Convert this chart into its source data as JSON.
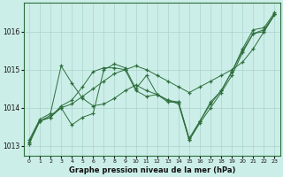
{
  "background_color": "#cceee8",
  "grid_color": "#aad4cc",
  "line_color": "#2d6e3c",
  "marker_color": "#2d6e3c",
  "title": "Graphe pression niveau de la mer (hPa)",
  "ylim": [
    1012.75,
    1016.75
  ],
  "xlim": [
    -0.5,
    23.5
  ],
  "yticks": [
    1013,
    1014,
    1015,
    1016
  ],
  "xticks": [
    0,
    1,
    2,
    3,
    4,
    5,
    6,
    7,
    8,
    9,
    10,
    11,
    12,
    13,
    14,
    15,
    16,
    17,
    18,
    19,
    20,
    21,
    22,
    23
  ],
  "series": [
    [
      1013.05,
      1013.65,
      1013.75,
      1014.0,
      1013.55,
      1013.75,
      1013.85,
      1015.0,
      1015.15,
      1015.05,
      1014.5,
      1014.85,
      1014.35,
      1014.15,
      1014.15,
      1013.15,
      1013.65,
      1014.15,
      1014.45,
      1014.95,
      1015.55,
      1016.05,
      1016.1,
      1016.5
    ],
    [
      1013.1,
      1013.65,
      1013.75,
      1014.05,
      1014.2,
      1014.55,
      1014.95,
      1015.05,
      1015.05,
      1015.0,
      1014.45,
      1014.3,
      1014.35,
      1014.2,
      1014.15,
      1013.2,
      1013.65,
      1014.1,
      1014.45,
      1014.95,
      1015.5,
      1015.95,
      1016.05,
      1016.45
    ],
    [
      1013.15,
      1013.7,
      1013.85,
      1015.1,
      1014.65,
      1014.25,
      1014.05,
      1014.1,
      1014.25,
      1014.45,
      1014.6,
      1014.45,
      1014.35,
      1014.2,
      1014.1,
      1013.15,
      1013.6,
      1014.0,
      1014.4,
      1014.85,
      1015.45,
      1015.95,
      1016.0,
      1016.45
    ],
    [
      1013.1,
      1013.65,
      1013.8,
      1014.0,
      1014.1,
      1014.3,
      1014.5,
      1014.7,
      1014.9,
      1015.0,
      1015.1,
      1015.0,
      1014.85,
      1014.7,
      1014.55,
      1014.4,
      1014.55,
      1014.7,
      1014.85,
      1015.0,
      1015.2,
      1015.55,
      1016.0,
      1016.45
    ]
  ]
}
